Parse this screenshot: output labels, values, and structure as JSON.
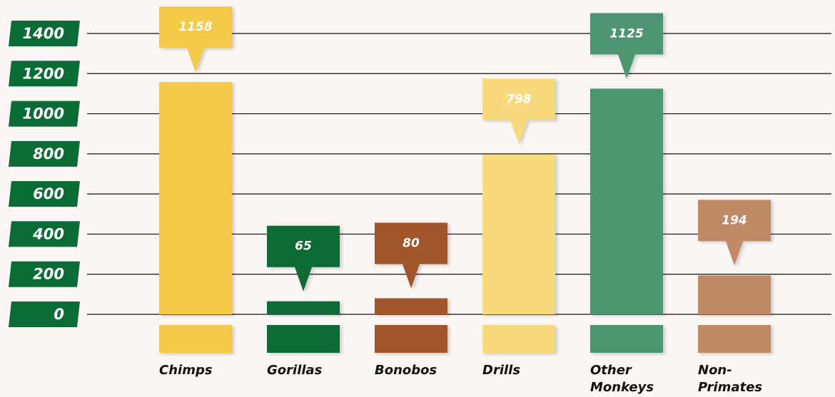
{
  "chart_data": {
    "type": "bar",
    "categories": [
      "Chimps",
      "Gorillas",
      "Bonobos",
      "Drills",
      "Other Monkeys",
      "Non-Primates"
    ],
    "values": [
      1158,
      65,
      80,
      798,
      1125,
      194
    ],
    "colors": [
      "#f5c94a",
      "#0a6b35",
      "#a0552a",
      "#f7d97e",
      "#4e9470",
      "#bf8a65"
    ],
    "ylim": [
      0,
      1400
    ],
    "yticks": [
      0,
      200,
      400,
      600,
      800,
      1000,
      1200,
      1400
    ],
    "grid": true
  }
}
